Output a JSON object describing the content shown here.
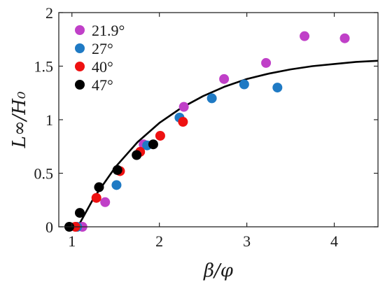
{
  "chart_data": {
    "type": "scatter",
    "xlabel": "β/φ",
    "ylabel": "L∞/H₀",
    "xlim": [
      0.85,
      4.5
    ],
    "ylim": [
      0,
      2
    ],
    "xticks": [
      1,
      2,
      3,
      4
    ],
    "yticks": [
      0,
      0.5,
      1,
      1.5,
      2
    ],
    "x_tick_labels": [
      "1",
      "2",
      "3",
      "4"
    ],
    "y_tick_labels": [
      "0",
      "0.5",
      "1",
      "1.5",
      "2"
    ],
    "grid": false,
    "legend": "top-left",
    "series": [
      {
        "name": "21.9°",
        "color": "#c040c8",
        "points": [
          [
            1.12,
            0.0
          ],
          [
            1.38,
            0.23
          ],
          [
            1.82,
            0.77
          ],
          [
            2.28,
            1.12
          ],
          [
            2.74,
            1.38
          ],
          [
            3.22,
            1.53
          ],
          [
            3.66,
            1.78
          ],
          [
            4.12,
            1.76
          ]
        ]
      },
      {
        "name": "27°",
        "color": "#1f7ac4",
        "points": [
          [
            1.06,
            0.0
          ],
          [
            1.51,
            0.39
          ],
          [
            1.86,
            0.76
          ],
          [
            2.23,
            1.02
          ],
          [
            2.6,
            1.2
          ],
          [
            2.97,
            1.33
          ],
          [
            3.35,
            1.3
          ]
        ]
      },
      {
        "name": "40°",
        "color": "#ee1111",
        "points": [
          [
            1.04,
            0.0
          ],
          [
            1.28,
            0.27
          ],
          [
            1.55,
            0.52
          ],
          [
            1.78,
            0.7
          ],
          [
            2.01,
            0.85
          ],
          [
            2.27,
            0.98
          ]
        ]
      },
      {
        "name": "47°",
        "color": "#000000",
        "points": [
          [
            0.97,
            0.0
          ],
          [
            1.09,
            0.13
          ],
          [
            1.31,
            0.37
          ],
          [
            1.52,
            0.53
          ],
          [
            1.74,
            0.67
          ],
          [
            1.93,
            0.77
          ]
        ]
      }
    ],
    "fit_curve": {
      "color": "#000000",
      "points": [
        [
          1.0,
          -0.1
        ],
        [
          1.25,
          0.27
        ],
        [
          1.5,
          0.56
        ],
        [
          1.75,
          0.79
        ],
        [
          2.0,
          0.97
        ],
        [
          2.25,
          1.11
        ],
        [
          2.5,
          1.22
        ],
        [
          2.75,
          1.31
        ],
        [
          3.0,
          1.38
        ],
        [
          3.25,
          1.43
        ],
        [
          3.5,
          1.47
        ],
        [
          3.75,
          1.5
        ],
        [
          4.0,
          1.52
        ],
        [
          4.25,
          1.54
        ],
        [
          4.5,
          1.55
        ]
      ]
    }
  }
}
